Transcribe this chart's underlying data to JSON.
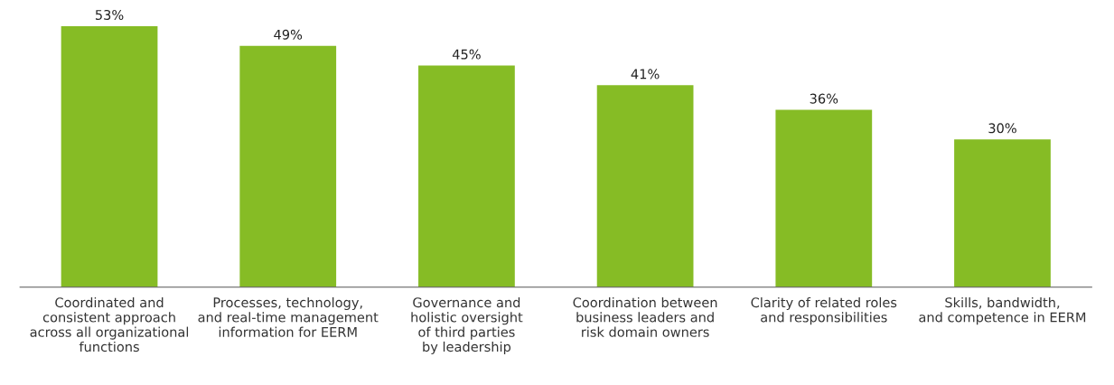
{
  "chart_data": {
    "type": "bar",
    "categories": [
      "Coordinated and\nconsistent approach\nacross all organizational\nfunctions",
      "Processes, technology,\nand real-time management\ninformation for EERM",
      "Governance and\nholistic oversight\nof third parties\nby leadership",
      "Coordination between\nbusiness leaders and\nrisk domain owners",
      "Clarity of related roles\nand responsibilities",
      "Skills, bandwidth,\nand competence in EERM"
    ],
    "values": [
      53,
      49,
      45,
      41,
      36,
      30
    ],
    "value_labels": [
      "53%",
      "49%",
      "45%",
      "41%",
      "36%",
      "30%"
    ],
    "color": "#86bc25",
    "tick_labels": "x",
    "grid": false,
    "legend": false
  }
}
